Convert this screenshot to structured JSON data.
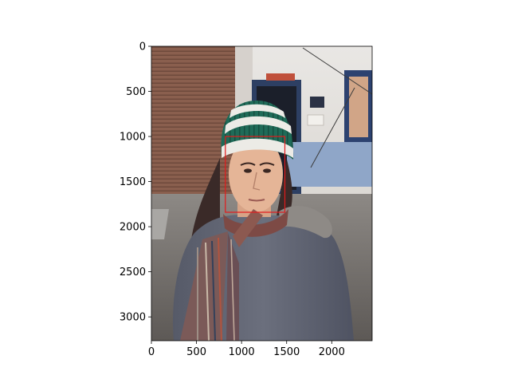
{
  "chart_data": {
    "type": "image",
    "title": "",
    "xlabel": "",
    "ylabel": "",
    "xlim": [
      0,
      2448
    ],
    "ylim": [
      3264,
      0
    ],
    "xticks": [
      0,
      500,
      1000,
      1500,
      2000
    ],
    "yticks": [
      0,
      500,
      1000,
      1500,
      2000,
      2500,
      3000
    ],
    "xtick_labels": [
      "0",
      "500",
      "1000",
      "1500",
      "2000"
    ],
    "ytick_labels": [
      "0",
      "500",
      "1000",
      "1500",
      "2000",
      "2500",
      "3000"
    ],
    "annotations": [
      {
        "type": "rectangle",
        "label": "face-bounding-box",
        "x0": 820,
        "y0": 1000,
        "x1": 1480,
        "y1": 1840,
        "color": "#e31a1c"
      }
    ],
    "image": {
      "subject": "young woman wearing a green and white knit beanie, a multicolored striped scarf and a dark gray cardigan",
      "background": "street scene with brown rolling shutter, white building wall with blue door frame and signs"
    }
  },
  "colors": {
    "axis": "#000000",
    "annotation": "#e31a1c",
    "background": "#ffffff"
  }
}
